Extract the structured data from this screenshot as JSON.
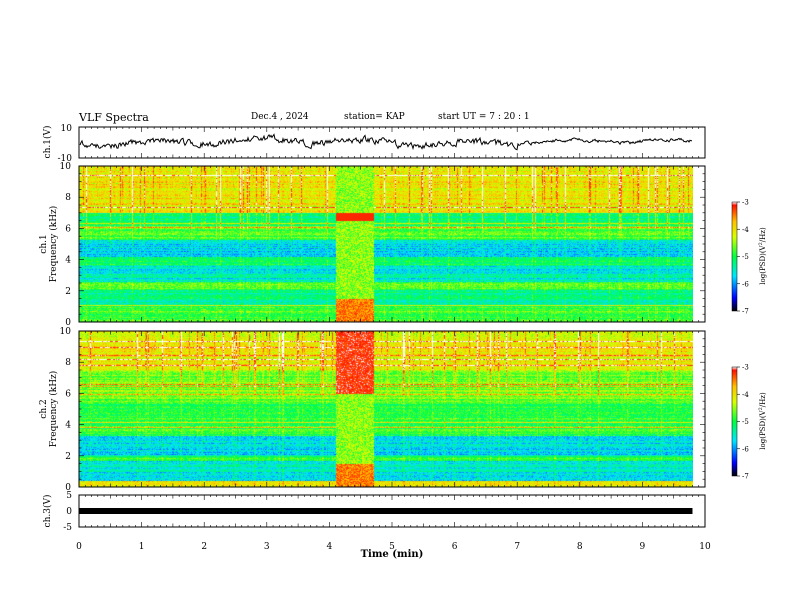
{
  "header": {
    "title": "VLF Spectra",
    "date": "Dec.4 , 2024",
    "station": "station= KAP",
    "start": "start UT = 7 : 20 : 1"
  },
  "colors": {
    "colormap": [
      "#000000",
      "#0000ff",
      "#00e5ff",
      "#00ff40",
      "#d8ff00",
      "#ffc000",
      "#ff1000",
      "#ffffff"
    ],
    "trace": "#000000"
  },
  "chart_data": [
    {
      "type": "line",
      "name": "ch1-waveform",
      "ylabel": "ch.1(V)",
      "ylim": [
        -10,
        10
      ],
      "yticks": [
        "10",
        "-10"
      ],
      "xlim": [
        0,
        10
      ]
    },
    {
      "type": "heatmap",
      "name": "ch1-spectrogram",
      "ylabel": "ch.1\nFrequency (kHz)",
      "ylim": [
        0,
        10
      ],
      "yticks": [
        "0",
        "2",
        "4",
        "6",
        "8",
        "10"
      ],
      "xlim": [
        0,
        10
      ],
      "data_end_min": 9.8,
      "burst_interval_min": [
        4.1,
        4.7
      ],
      "colorbar": {
        "label": "log(PSD)(V²/Hz)",
        "range": [
          -7,
          -3
        ],
        "ticks": [
          "-3",
          "-4",
          "-5",
          "-6",
          "-7"
        ]
      }
    },
    {
      "type": "heatmap",
      "name": "ch2-spectrogram",
      "ylabel": "ch.2\nFrequency (kHz)",
      "ylim": [
        0,
        10
      ],
      "yticks": [
        "0",
        "2",
        "4",
        "6",
        "8",
        "10"
      ],
      "xlim": [
        0,
        10
      ],
      "data_end_min": 9.8,
      "burst_interval_min": [
        4.1,
        4.7
      ],
      "colorbar": {
        "label": "log(PSD)(V²/Hz)",
        "range": [
          -7,
          -3
        ],
        "ticks": [
          "-3",
          "-4",
          "-5",
          "-6",
          "-7"
        ]
      }
    },
    {
      "type": "line",
      "name": "ch3-waveform",
      "ylabel": "ch.3(V)",
      "ylim": [
        -5,
        5
      ],
      "yticks": [
        "5",
        "0",
        "-5"
      ],
      "xlim": [
        0,
        10
      ],
      "series": [
        {
          "x": [
            0,
            9.8
          ],
          "y": [
            0,
            0
          ]
        }
      ],
      "xlabel": "Time (min)",
      "xticks": [
        "0",
        "1",
        "2",
        "3",
        "4",
        "5",
        "6",
        "7",
        "8",
        "9",
        "10"
      ]
    }
  ]
}
